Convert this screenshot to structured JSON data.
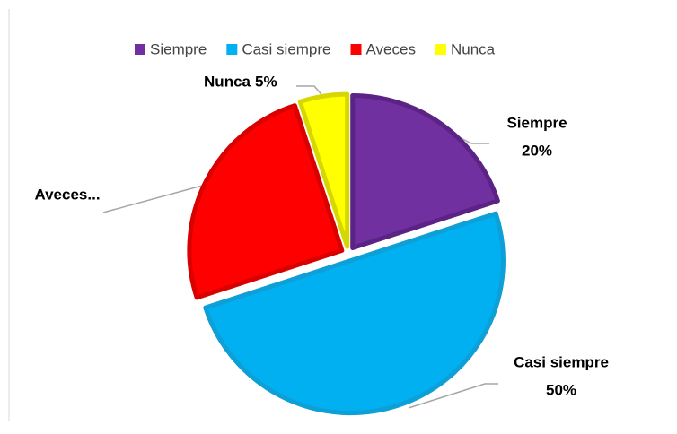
{
  "chart_data": {
    "type": "pie",
    "categories": [
      "Siempre",
      "Casi siempre",
      "Aveces",
      "Nunca"
    ],
    "values": [
      20,
      50,
      25,
      5
    ],
    "value_labels": [
      "20%",
      "50%",
      null,
      "5%"
    ],
    "label_texts": [
      "Siempre",
      "Casi siempre",
      "Aveces...",
      "Nunca"
    ],
    "colors": [
      "#7030a0",
      "#00b0f0",
      "#ff0000",
      "#ffff00"
    ],
    "stroke_colors": [
      "#5b2385",
      "#0e9fd6",
      "#d90000",
      "#d6d600"
    ],
    "legend": "top"
  }
}
